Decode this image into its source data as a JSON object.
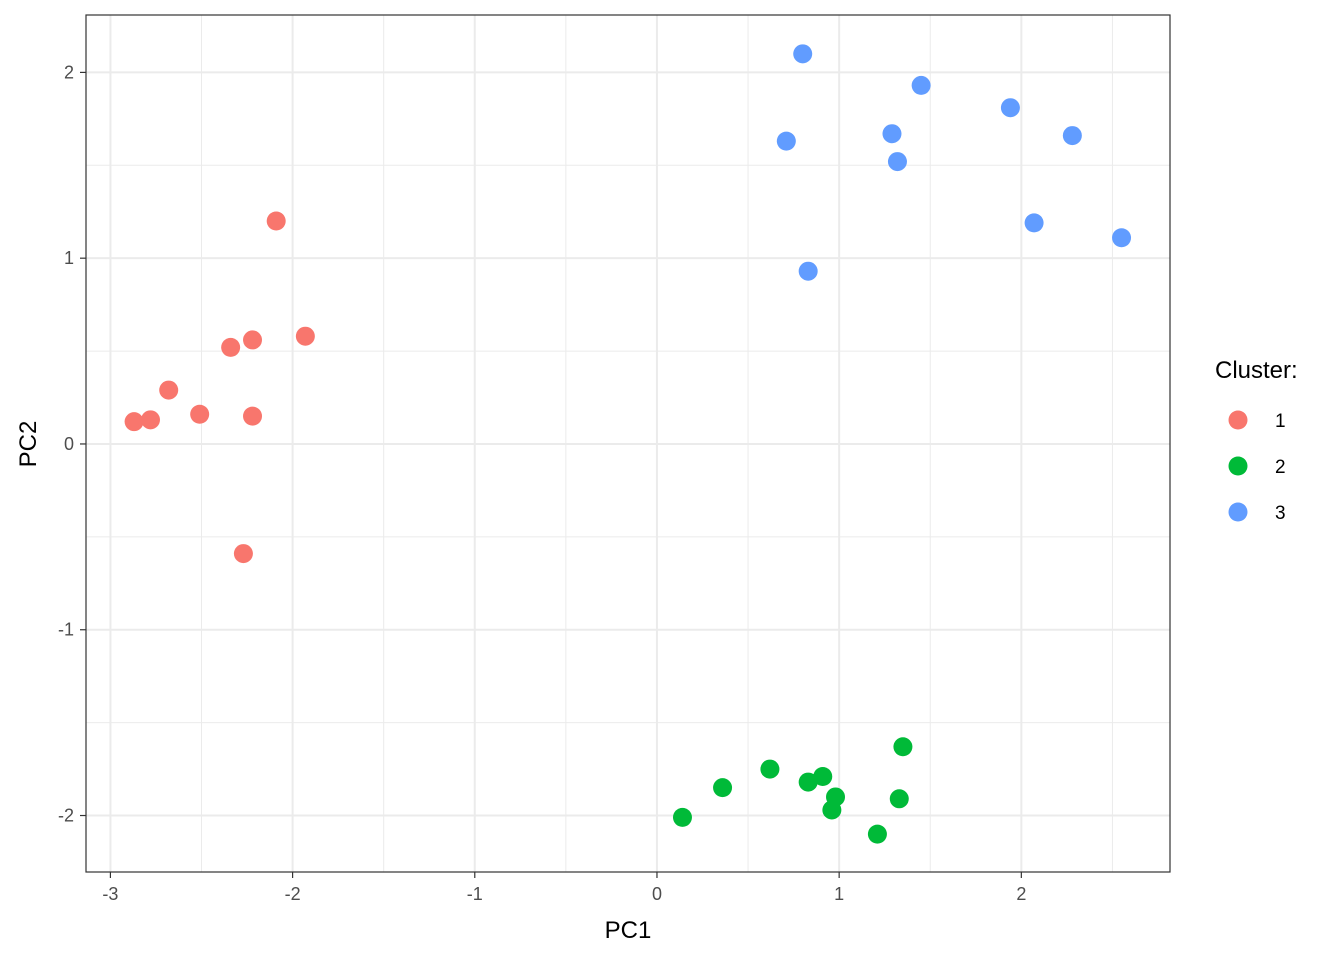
{
  "chart_data": {
    "type": "scatter",
    "title": "",
    "xlabel": "PC1",
    "ylabel": "PC2",
    "xlim": [
      -3.134,
      2.816
    ],
    "ylim": [
      -2.304,
      2.309
    ],
    "xticks": [
      -3,
      -2,
      -1,
      0,
      1,
      2
    ],
    "yticks": [
      -2,
      -1,
      0,
      1,
      2
    ],
    "xtick_labels": [
      "-3",
      "-2",
      "-1",
      "0",
      "1",
      "2"
    ],
    "ytick_labels": [
      "-2",
      "-1",
      "0",
      "1",
      "2"
    ],
    "grid": true,
    "legend": {
      "title": "Cluster:",
      "placement": "right"
    },
    "series": [
      {
        "name": "1",
        "color": "#F8766D",
        "points": [
          [
            -2.09,
            1.2
          ],
          [
            -1.93,
            0.58
          ],
          [
            -2.34,
            0.52
          ],
          [
            -2.22,
            0.56
          ],
          [
            -2.68,
            0.29
          ],
          [
            -2.87,
            0.12
          ],
          [
            -2.78,
            0.13
          ],
          [
            -2.51,
            0.16
          ],
          [
            -2.22,
            0.15
          ],
          [
            -2.27,
            -0.59
          ]
        ]
      },
      {
        "name": "2",
        "color": "#00BA38",
        "points": [
          [
            0.14,
            -2.01
          ],
          [
            0.36,
            -1.85
          ],
          [
            0.62,
            -1.75
          ],
          [
            0.83,
            -1.82
          ],
          [
            0.91,
            -1.79
          ],
          [
            0.98,
            -1.9
          ],
          [
            0.96,
            -1.97
          ],
          [
            1.21,
            -2.1
          ],
          [
            1.33,
            -1.91
          ],
          [
            1.35,
            -1.63
          ]
        ]
      },
      {
        "name": "3",
        "color": "#619CFF",
        "points": [
          [
            0.8,
            2.1
          ],
          [
            1.45,
            1.93
          ],
          [
            1.94,
            1.81
          ],
          [
            2.28,
            1.66
          ],
          [
            1.29,
            1.67
          ],
          [
            0.71,
            1.63
          ],
          [
            1.32,
            1.52
          ],
          [
            2.07,
            1.19
          ],
          [
            2.55,
            1.11
          ],
          [
            0.83,
            0.93
          ]
        ]
      }
    ]
  }
}
